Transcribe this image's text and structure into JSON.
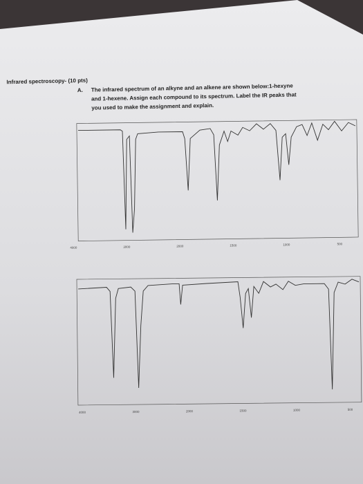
{
  "header": {
    "question": "Infrared spectroscopy- (10 pts)",
    "part": "A.",
    "prompt": [
      "The infrared spectrum of an alkyne and an alkene are shown below:1-hexyne",
      "and 1-hexene. Assign each compound to its spectrum. Label the IR peaks that",
      "you used to make the assignment and explain."
    ]
  },
  "spectra": [
    {
      "x_labels": [
        "4000",
        "3000",
        "2000",
        "1500",
        "1000",
        "500"
      ]
    },
    {
      "x_labels": [
        "4000",
        "3000",
        "2000",
        "1500",
        "1000",
        "500"
      ]
    }
  ]
}
